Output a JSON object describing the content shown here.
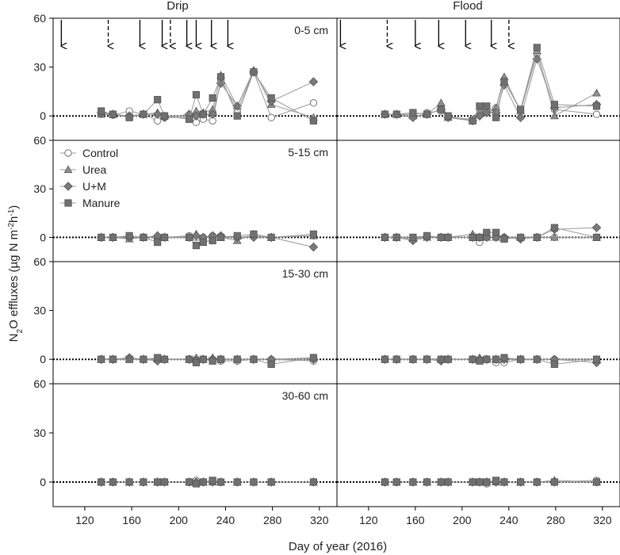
{
  "chart_data": {
    "type": "scatter",
    "xlabel": "Day of year (2016)",
    "ylabel_parts": [
      "N",
      "2",
      "O effluxes (µg N m",
      "-2",
      "h",
      "-1",
      ")"
    ],
    "columns": [
      "Drip",
      "Flood"
    ],
    "depths": [
      "0-5 cm",
      "5-15 cm",
      "15-30 cm",
      "30-60 cm"
    ],
    "xlim": [
      93,
      335
    ],
    "x_ticks": [
      120,
      160,
      200,
      240,
      280,
      320
    ],
    "ylim": [
      -15,
      60
    ],
    "y_ticks": [
      0,
      30,
      60
    ],
    "legend": {
      "placement": "top-left of second row",
      "entries": [
        {
          "name": "Control",
          "marker": "circle",
          "fill": "#ffffff"
        },
        {
          "name": "Urea",
          "marker": "triangle",
          "fill": "#909090"
        },
        {
          "name": "U+M",
          "marker": "diamond",
          "fill": "#7a7a7a"
        },
        {
          "name": "Manure",
          "marker": "square",
          "fill": "#707070"
        }
      ]
    },
    "fertilizer_events": {
      "Drip": [
        {
          "x": 100,
          "style": "solid"
        },
        {
          "x": 140,
          "style": "dashed"
        },
        {
          "x": 167,
          "style": "solid"
        },
        {
          "x": 186,
          "style": "solid"
        },
        {
          "x": 193,
          "style": "dashed"
        },
        {
          "x": 207,
          "style": "solid"
        },
        {
          "x": 215,
          "style": "solid"
        },
        {
          "x": 228,
          "style": "solid"
        },
        {
          "x": 242,
          "style": "solid"
        }
      ],
      "Flood": [
        {
          "x": 96,
          "style": "solid"
        },
        {
          "x": 136,
          "style": "dashed"
        },
        {
          "x": 160,
          "style": "solid"
        },
        {
          "x": 180,
          "style": "solid"
        },
        {
          "x": 203,
          "style": "solid"
        },
        {
          "x": 225,
          "style": "solid"
        },
        {
          "x": 240,
          "style": "dashed"
        }
      ]
    },
    "x": [
      134,
      144,
      158,
      170,
      182,
      188,
      209,
      215,
      221,
      229,
      236,
      250,
      264,
      279,
      315
    ],
    "panels": [
      {
        "column": "Drip",
        "depth": "0-5 cm",
        "series": [
          {
            "name": "Control",
            "values": [
              1,
              0.5,
              3,
              1,
              -3,
              -1,
              -1,
              -4,
              -2,
              -3,
              22,
              3,
              27,
              -1,
              8
            ]
          },
          {
            "name": "Urea",
            "values": [
              1,
              1,
              0,
              1,
              2,
              0,
              0,
              3,
              2,
              4,
              25,
              6,
              28,
              7,
              -1
            ]
          },
          {
            "name": "U+M",
            "values": [
              2,
              1,
              0,
              1,
              1,
              -1,
              1,
              0,
              1,
              1,
              20,
              6,
              27,
              9,
              21
            ]
          },
          {
            "name": "Manure",
            "values": [
              3,
              1,
              -1,
              1,
              10,
              0,
              -2,
              13,
              1,
              11,
              24,
              0,
              27,
              11,
              -3
            ]
          }
        ]
      },
      {
        "column": "Drip",
        "depth": "5-15 cm",
        "series": [
          {
            "name": "Control",
            "values": [
              0,
              0,
              0,
              0,
              0,
              0,
              1,
              0,
              0,
              1,
              0,
              0,
              1,
              0,
              1
            ]
          },
          {
            "name": "Urea",
            "values": [
              0,
              0,
              -1,
              0,
              1,
              0,
              0,
              2,
              0,
              0,
              0,
              -2,
              2,
              0,
              1
            ]
          },
          {
            "name": "U+M",
            "values": [
              0,
              0,
              0,
              0,
              1,
              0,
              0,
              1,
              0,
              1,
              1,
              0,
              0,
              0,
              -6
            ]
          },
          {
            "name": "Manure",
            "values": [
              0,
              0,
              1,
              0,
              -3,
              0,
              0,
              -5,
              -3,
              -2,
              0,
              1,
              2,
              0,
              2
            ]
          }
        ]
      },
      {
        "column": "Drip",
        "depth": "15-30 cm",
        "series": [
          {
            "name": "Control",
            "values": [
              0,
              0,
              0,
              0,
              0,
              0,
              0,
              0,
              0,
              0,
              -1,
              -1,
              0,
              0,
              -1
            ]
          },
          {
            "name": "Urea",
            "values": [
              0,
              0,
              0,
              0,
              0,
              0,
              0,
              1,
              0,
              1,
              0,
              0,
              0,
              0,
              1
            ]
          },
          {
            "name": "U+M",
            "values": [
              0,
              0,
              1,
              0,
              -1,
              0,
              0,
              -1,
              0,
              0,
              0,
              0,
              0,
              0,
              0
            ]
          },
          {
            "name": "Manure",
            "values": [
              0,
              0,
              0,
              0,
              1,
              0,
              0,
              -2,
              0,
              -1,
              0,
              0,
              0,
              -3,
              1
            ]
          }
        ]
      },
      {
        "column": "Drip",
        "depth": "30-60 cm",
        "series": [
          {
            "name": "Control",
            "values": [
              0,
              0,
              0,
              0,
              0,
              0,
              0,
              1,
              0,
              0,
              0,
              0,
              0,
              0,
              0
            ]
          },
          {
            "name": "Urea",
            "values": [
              0,
              0,
              0,
              0,
              0,
              0,
              0,
              0,
              0,
              0,
              0,
              0,
              0,
              0,
              0
            ]
          },
          {
            "name": "U+M",
            "values": [
              0,
              0,
              0,
              0,
              0,
              0,
              0,
              0,
              0,
              0,
              0,
              0,
              0,
              0,
              0
            ]
          },
          {
            "name": "Manure",
            "values": [
              0,
              0,
              0,
              0,
              0,
              0,
              0,
              -1,
              0,
              1,
              0,
              0,
              0,
              0,
              0
            ]
          }
        ]
      },
      {
        "column": "Flood",
        "depth": "",
        "series": [
          {
            "name": "Control",
            "values": [
              1,
              1,
              1,
              2,
              3,
              -1,
              -2,
              4,
              3,
              5,
              22,
              3,
              38,
              4,
              1
            ]
          },
          {
            "name": "Urea",
            "values": [
              1,
              1,
              0,
              1,
              8,
              -1,
              -3,
              3,
              2,
              5,
              24,
              3,
              40,
              0,
              14
            ]
          },
          {
            "name": "U+M",
            "values": [
              1,
              1,
              -1,
              1,
              4,
              -1,
              -3,
              0,
              2,
              2,
              19,
              -1,
              35,
              5,
              7
            ]
          },
          {
            "name": "Manure",
            "values": [
              1,
              1,
              2,
              1,
              4,
              0,
              -3,
              6,
              6,
              -1,
              21,
              4,
              42,
              7,
              6
            ]
          }
        ]
      },
      {
        "column": "Flood",
        "depth": "",
        "series": [
          {
            "name": "Control",
            "values": [
              0,
              0,
              0,
              0,
              0,
              0,
              0,
              -3,
              0,
              0,
              0,
              0,
              0,
              0,
              0
            ]
          },
          {
            "name": "Urea",
            "values": [
              0,
              0,
              -1,
              0,
              0,
              0,
              2,
              0,
              0,
              0,
              0,
              0,
              0,
              0,
              0
            ]
          },
          {
            "name": "U+M",
            "values": [
              0,
              0,
              -2,
              0,
              0,
              0,
              0,
              0,
              0,
              0,
              0,
              -1,
              0,
              5,
              6
            ]
          },
          {
            "name": "Manure",
            "values": [
              0,
              0,
              0,
              1,
              0,
              0,
              0,
              0,
              3,
              3,
              -1,
              0,
              0,
              6,
              0
            ]
          }
        ]
      },
      {
        "column": "Flood",
        "depth": "",
        "series": [
          {
            "name": "Control",
            "values": [
              0,
              0,
              0,
              0,
              0,
              0,
              0,
              0,
              0,
              -2,
              -2,
              0,
              0,
              0,
              0
            ]
          },
          {
            "name": "Urea",
            "values": [
              0,
              0,
              0,
              0,
              0,
              0,
              0,
              1,
              0,
              0,
              0,
              0,
              0,
              0,
              0
            ]
          },
          {
            "name": "U+M",
            "values": [
              0,
              0,
              0,
              0,
              -1,
              0,
              0,
              0,
              0,
              0,
              0,
              0,
              0,
              0,
              -2
            ]
          },
          {
            "name": "Manure",
            "values": [
              0,
              0,
              0,
              0,
              0,
              0,
              0,
              -1,
              0,
              0,
              1,
              0,
              0,
              -3,
              0
            ]
          }
        ]
      },
      {
        "column": "Flood",
        "depth": "",
        "series": [
          {
            "name": "Control",
            "values": [
              0,
              0,
              0,
              0,
              0,
              0,
              0,
              0,
              -1,
              0,
              0,
              0,
              0,
              0,
              1
            ]
          },
          {
            "name": "Urea",
            "values": [
              0,
              0,
              0,
              0,
              0,
              0,
              0,
              0,
              0,
              0,
              0,
              0,
              0,
              1,
              0
            ]
          },
          {
            "name": "U+M",
            "values": [
              0,
              0,
              0,
              0,
              0,
              0,
              0,
              0,
              0,
              0,
              0,
              0,
              0,
              0,
              0
            ]
          },
          {
            "name": "Manure",
            "values": [
              0,
              0,
              0,
              0,
              0,
              0,
              0,
              0,
              0,
              1,
              0,
              0,
              0,
              0,
              0
            ]
          }
        ]
      }
    ]
  }
}
